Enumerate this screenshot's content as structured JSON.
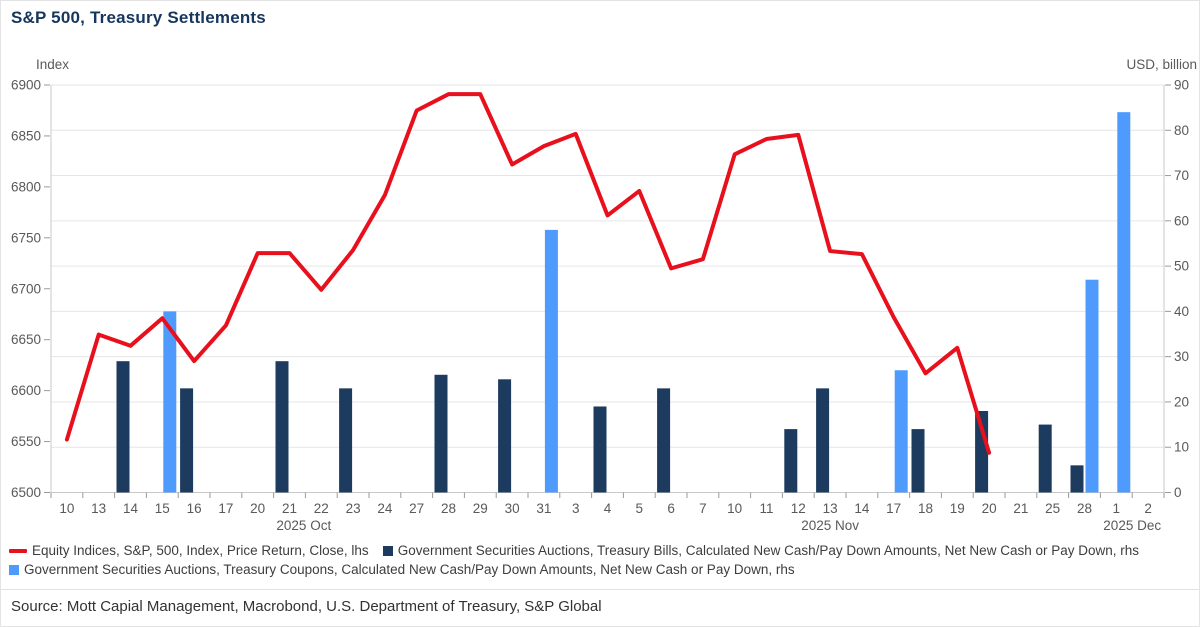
{
  "title": "S&P 500, Treasury Settlements",
  "axes": {
    "left_unit": "Index",
    "right_unit": "USD, billion"
  },
  "legend": [
    {
      "label": "Equity Indices, S&P, 500, Index, Price Return, Close, lhs",
      "marker": "line",
      "color": "#e8101c"
    },
    {
      "label": "Government Securities Auctions, Treasury Bills, Calculated New Cash/Pay Down Amounts, Net New Cash or Pay Down, rhs",
      "marker": "square",
      "color": "#1d3a5f"
    },
    {
      "label": "Government Securities Auctions, Treasury Coupons, Calculated New Cash/Pay Down Amounts, Net New Cash or Pay Down, rhs",
      "marker": "square",
      "color": "#4f9bfd"
    }
  ],
  "source": "Source: Mott Capial Management, Macrobond, U.S. Department of Treasury, S&P Global",
  "colors": {
    "line": "#e8101c",
    "bills_bar": "#1d3a5f",
    "coupons_bar": "#4f9bfd",
    "grid": "#e6e6e6",
    "axis": "#c9c9c9",
    "tick": "#9a9a9a",
    "axis_text": "#595959",
    "title": "#17365d"
  },
  "chart_data": {
    "type": "line+bar",
    "categories": [
      "10",
      "13",
      "14",
      "15",
      "16",
      "17",
      "20",
      "21",
      "22",
      "23",
      "24",
      "27",
      "28",
      "29",
      "30",
      "31",
      "3",
      "4",
      "5",
      "6",
      "7",
      "10",
      "11",
      "12",
      "13",
      "14",
      "17",
      "18",
      "19",
      "20",
      "21",
      "25",
      "28",
      "1",
      "2"
    ],
    "month_labels": [
      {
        "label": "2025 Oct",
        "center_index": 7.45
      },
      {
        "label": "2025 Nov",
        "center_index": 24.0
      },
      {
        "label": "2025 Dec",
        "center_index": 33.5
      }
    ],
    "left_axis": {
      "title": "Index",
      "min": 6500,
      "max": 6900,
      "step": 50
    },
    "right_axis": {
      "title": "USD, billion",
      "min": 0,
      "max": 90,
      "step": 10
    },
    "grid": "horizontal, at right-axis steps",
    "legend_position": "bottom",
    "series": [
      {
        "name": "Equity Indices, S&P, 500, Index, Price Return, Close, lhs",
        "type": "line",
        "axis": "left",
        "color": "#e8101c",
        "values": [
          6552,
          6655,
          6644,
          6671,
          6629,
          6664,
          6735,
          6735,
          6699,
          6738,
          6792,
          6875,
          6891,
          6891,
          6822,
          6840,
          6852,
          6772,
          6796,
          6720,
          6729,
          6832,
          6847,
          6851,
          6737,
          6734,
          6672,
          6617,
          6642,
          6539,
          null,
          null,
          null,
          null,
          null
        ]
      },
      {
        "name": "Government Securities Auctions, Treasury Bills, Calculated New Cash/Pay Down Amounts, Net New Cash or Pay Down, rhs",
        "type": "bar",
        "axis": "right",
        "color": "#1d3a5f",
        "offset": "left",
        "values": [
          null,
          null,
          29,
          null,
          23,
          null,
          null,
          29,
          null,
          23,
          null,
          null,
          26,
          null,
          25,
          null,
          null,
          19,
          null,
          23,
          null,
          null,
          null,
          14,
          23,
          null,
          null,
          14,
          null,
          18,
          null,
          15,
          6,
          null,
          null
        ]
      },
      {
        "name": "Government Securities Auctions, Treasury Coupons, Calculated New Cash/Pay Down Amounts, Net New Cash or Pay Down, rhs",
        "type": "bar",
        "axis": "right",
        "color": "#4f9bfd",
        "offset": "right",
        "values": [
          null,
          null,
          null,
          40,
          null,
          null,
          null,
          null,
          null,
          null,
          null,
          null,
          null,
          null,
          null,
          58,
          null,
          null,
          null,
          null,
          null,
          null,
          null,
          null,
          null,
          null,
          27,
          null,
          null,
          null,
          null,
          null,
          47,
          84,
          null
        ]
      }
    ]
  }
}
